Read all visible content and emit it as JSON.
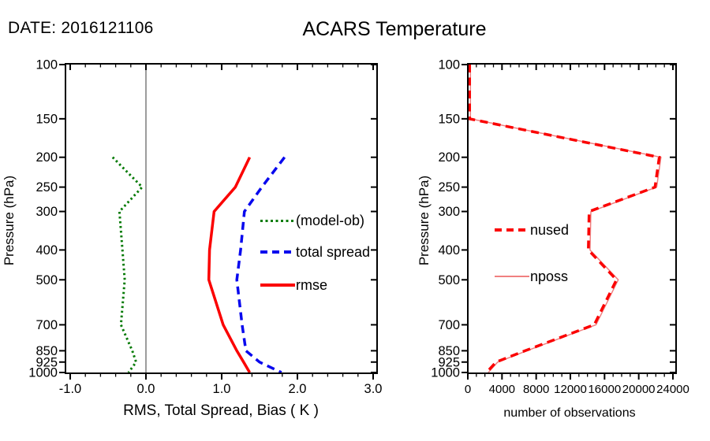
{
  "header": {
    "date_label": "DATE: 2016121106",
    "title": "ACARS Temperature"
  },
  "colors": {
    "bias_green": "#057a05",
    "spread_blue": "#0808ee",
    "rmse_red": "#fb0000",
    "nposs_light_red": "#f08080",
    "axis_black": "#000000",
    "zero_line_gray": "#3a3a3a"
  },
  "chart_data": [
    {
      "type": "line",
      "id": "left-profile",
      "title": "",
      "xlabel": "RMS, Total Spread, Bias ( K )",
      "ylabel": "Pressure (hPa)",
      "xlim": [
        -1.0,
        3.0
      ],
      "x_major_ticks": [
        -1.0,
        0.0,
        1.0,
        2.0,
        3.0
      ],
      "x_tick_labels": [
        "-1.0",
        "0.0",
        "1.0",
        "2.0",
        "3.0"
      ],
      "x_minor_step": 0.2,
      "y_scale": "log",
      "ylim": [
        100,
        1000
      ],
      "y_ticks": [
        100,
        150,
        200,
        250,
        300,
        400,
        500,
        700,
        850,
        925,
        1000
      ],
      "y_tick_labels": [
        "100",
        "150",
        "200",
        "250",
        "300",
        "400",
        "500",
        "700",
        "850",
        "925",
        "1000"
      ],
      "grid": false,
      "zero_line": true,
      "legend_position": "inside-right",
      "series": [
        {
          "name": "(model-ob)",
          "color": "#057a05",
          "style": "dotted",
          "width": 3,
          "pressure": [
            200,
            250,
            300,
            400,
            500,
            700,
            850,
            925,
            1000
          ],
          "values": [
            -0.44,
            -0.05,
            -0.35,
            -0.31,
            -0.28,
            -0.33,
            -0.18,
            -0.13,
            -0.23
          ]
        },
        {
          "name": "total spread",
          "color": "#0808ee",
          "style": "dashed",
          "width": 3.5,
          "pressure": [
            200,
            250,
            300,
            400,
            500,
            700,
            850,
            925,
            1000
          ],
          "values": [
            1.83,
            1.53,
            1.3,
            1.25,
            1.2,
            1.27,
            1.32,
            1.5,
            1.79
          ]
        },
        {
          "name": "rmse",
          "color": "#fb0000",
          "style": "solid",
          "width": 3.5,
          "pressure": [
            200,
            250,
            300,
            400,
            500,
            700,
            850,
            925,
            1000
          ],
          "values": [
            1.37,
            1.18,
            0.9,
            0.84,
            0.83,
            1.02,
            1.2,
            1.29,
            1.37
          ]
        }
      ]
    },
    {
      "type": "line",
      "id": "right-obs-count",
      "title": "",
      "xlabel": "number of observations",
      "ylabel": "Pressure (hPa)",
      "xlim": [
        0,
        24000
      ],
      "x_major_ticks": [
        0,
        4000,
        8000,
        12000,
        16000,
        20000,
        24000
      ],
      "x_tick_labels": [
        "0",
        "4000",
        "8000",
        "12000",
        "16000",
        "20000",
        "24000"
      ],
      "x_minor_step": 1000,
      "y_scale": "log",
      "ylim": [
        100,
        1000
      ],
      "y_ticks": [
        100,
        150,
        200,
        250,
        300,
        400,
        500,
        700,
        850,
        925,
        1000
      ],
      "y_tick_labels": [
        "100",
        "150",
        "200",
        "250",
        "300",
        "400",
        "500",
        "700",
        "850",
        "925",
        "1000"
      ],
      "grid": false,
      "zero_line": false,
      "legend_position": "inside-left",
      "series": [
        {
          "name": "nused",
          "color": "#fb0000",
          "style": "dashed",
          "width": 3.5,
          "z": 2,
          "pressure": [
            100,
            150,
            200,
            250,
            300,
            400,
            500,
            700,
            850,
            925,
            1000
          ],
          "values": [
            200,
            200,
            22400,
            21900,
            14200,
            14100,
            17400,
            14800,
            6700,
            3300,
            2200
          ]
        },
        {
          "name": "nposs",
          "color": "#f08080",
          "style": "solid",
          "width": 1.5,
          "z": 1,
          "pressure": [
            100,
            150,
            200,
            250,
            300,
            400,
            500,
            700,
            850,
            925,
            1000
          ],
          "values": [
            300,
            300,
            22600,
            22100,
            14400,
            14300,
            17600,
            15000,
            6900,
            3500,
            2400
          ]
        }
      ]
    }
  ]
}
